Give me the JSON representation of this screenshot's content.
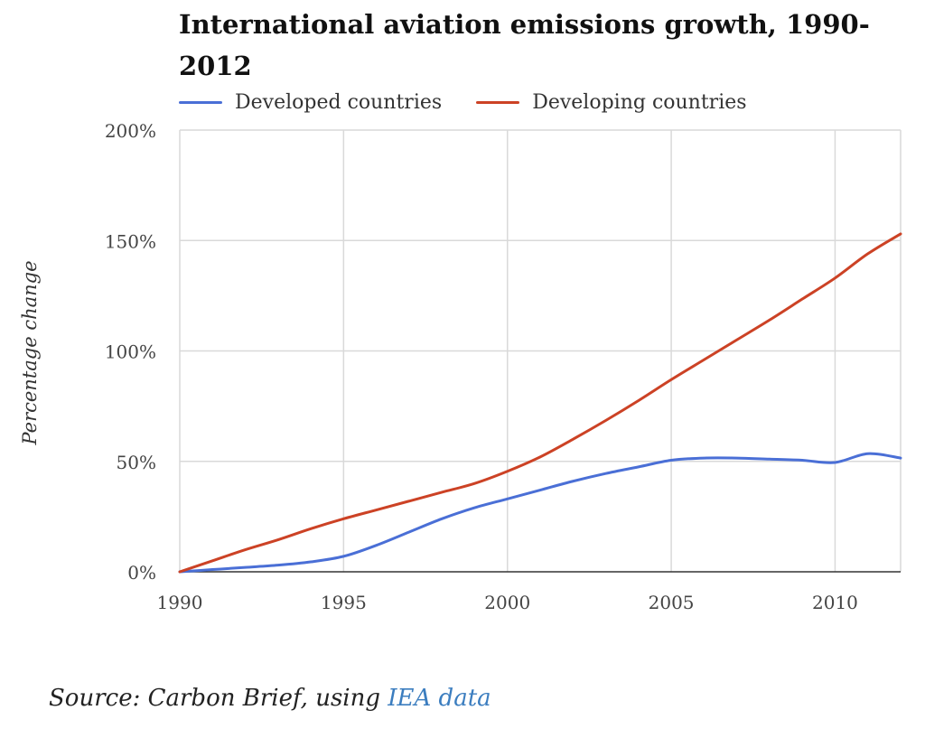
{
  "chart_data": {
    "type": "line",
    "title": "International aviation emissions growth, 1990-2012",
    "xlabel": "",
    "ylabel": "Percentage change",
    "x": [
      1990,
      1991,
      1992,
      1993,
      1994,
      1995,
      1996,
      1997,
      1998,
      1999,
      2000,
      2001,
      2002,
      2003,
      2004,
      2005,
      2006,
      2007,
      2008,
      2009,
      2010,
      2011,
      2012
    ],
    "series": [
      {
        "name": "Developed countries",
        "color": "#4a6fd6",
        "values": [
          0,
          1,
          2,
          3,
          4.5,
          7,
          12,
          18,
          24,
          29,
          33,
          37,
          41,
          44.5,
          47.5,
          50.5,
          51.5,
          51.5,
          51,
          50.5,
          49.5,
          53.5,
          51.5
        ]
      },
      {
        "name": "Developing countries",
        "color": "#cc4225",
        "values": [
          0,
          5,
          10,
          14.5,
          19.5,
          24,
          28,
          32,
          36,
          40,
          45.5,
          52,
          60,
          68.5,
          77.5,
          87,
          96,
          105,
          114,
          123.5,
          133,
          144,
          153
        ]
      }
    ],
    "xlim": [
      1990,
      2012
    ],
    "ylim": [
      0,
      200
    ],
    "xticks": [
      1990,
      1995,
      2000,
      2005,
      2010
    ],
    "xtick_labels": [
      "1990",
      "1995",
      "2000",
      "2005",
      "2010"
    ],
    "yticks": [
      0,
      50,
      100,
      150,
      200
    ],
    "ytick_labels": [
      "0%",
      "50%",
      "100%",
      "150%",
      "200%"
    ],
    "grid": true,
    "legend": "top-left"
  },
  "title": "International aviation emissions growth, 1990-2012",
  "legend": {
    "developed": "Developed countries",
    "developing": "Developing countries"
  },
  "source": {
    "prefix": "Source: Carbon Brief, using ",
    "link": "IEA data",
    "link_color": "#3b7dbf"
  }
}
